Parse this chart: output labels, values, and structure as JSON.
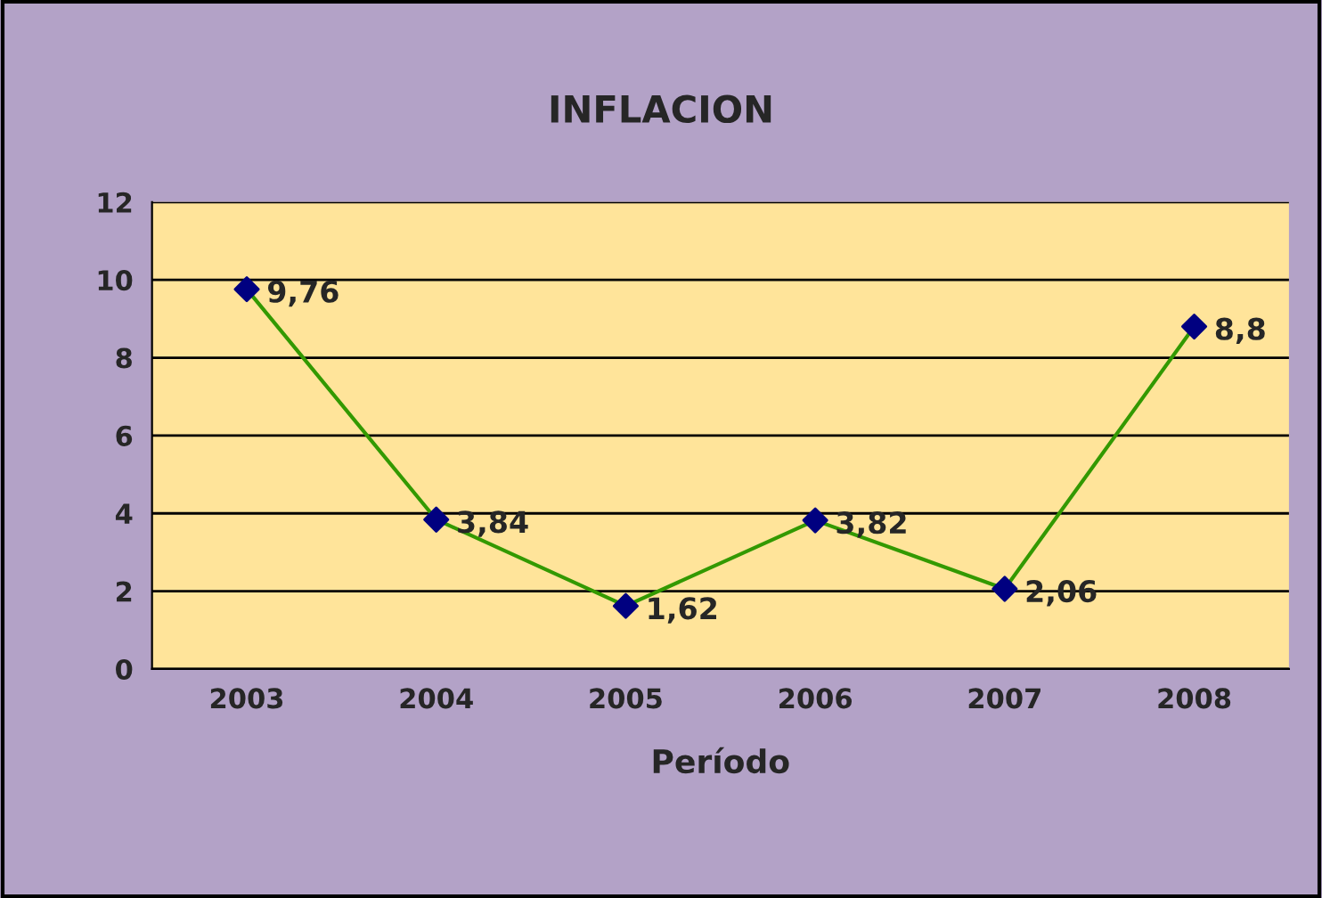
{
  "chart_data": {
    "type": "line",
    "title": "INFLACION",
    "xlabel": "Período",
    "categories": [
      "2003",
      "2004",
      "2005",
      "2006",
      "2007",
      "2008"
    ],
    "series": [
      {
        "color": "#339900",
        "colors": [
          "#000080",
          "#000080",
          "#000080",
          "#000080",
          "#000080",
          "#000080"
        ],
        "values": [
          9.76,
          3.84,
          1.62,
          3.82,
          2.06,
          8.8
        ],
        "value_labels": [
          "9,76",
          "3,84",
          "1,62",
          "3,82",
          "2,06",
          "8,8"
        ]
      }
    ],
    "ylim": [
      0,
      12
    ],
    "yticks": [
      0,
      2,
      4,
      6,
      8,
      10,
      12
    ],
    "grid": "y",
    "legend": false,
    "marker": "diamond",
    "line_style": "solid"
  }
}
